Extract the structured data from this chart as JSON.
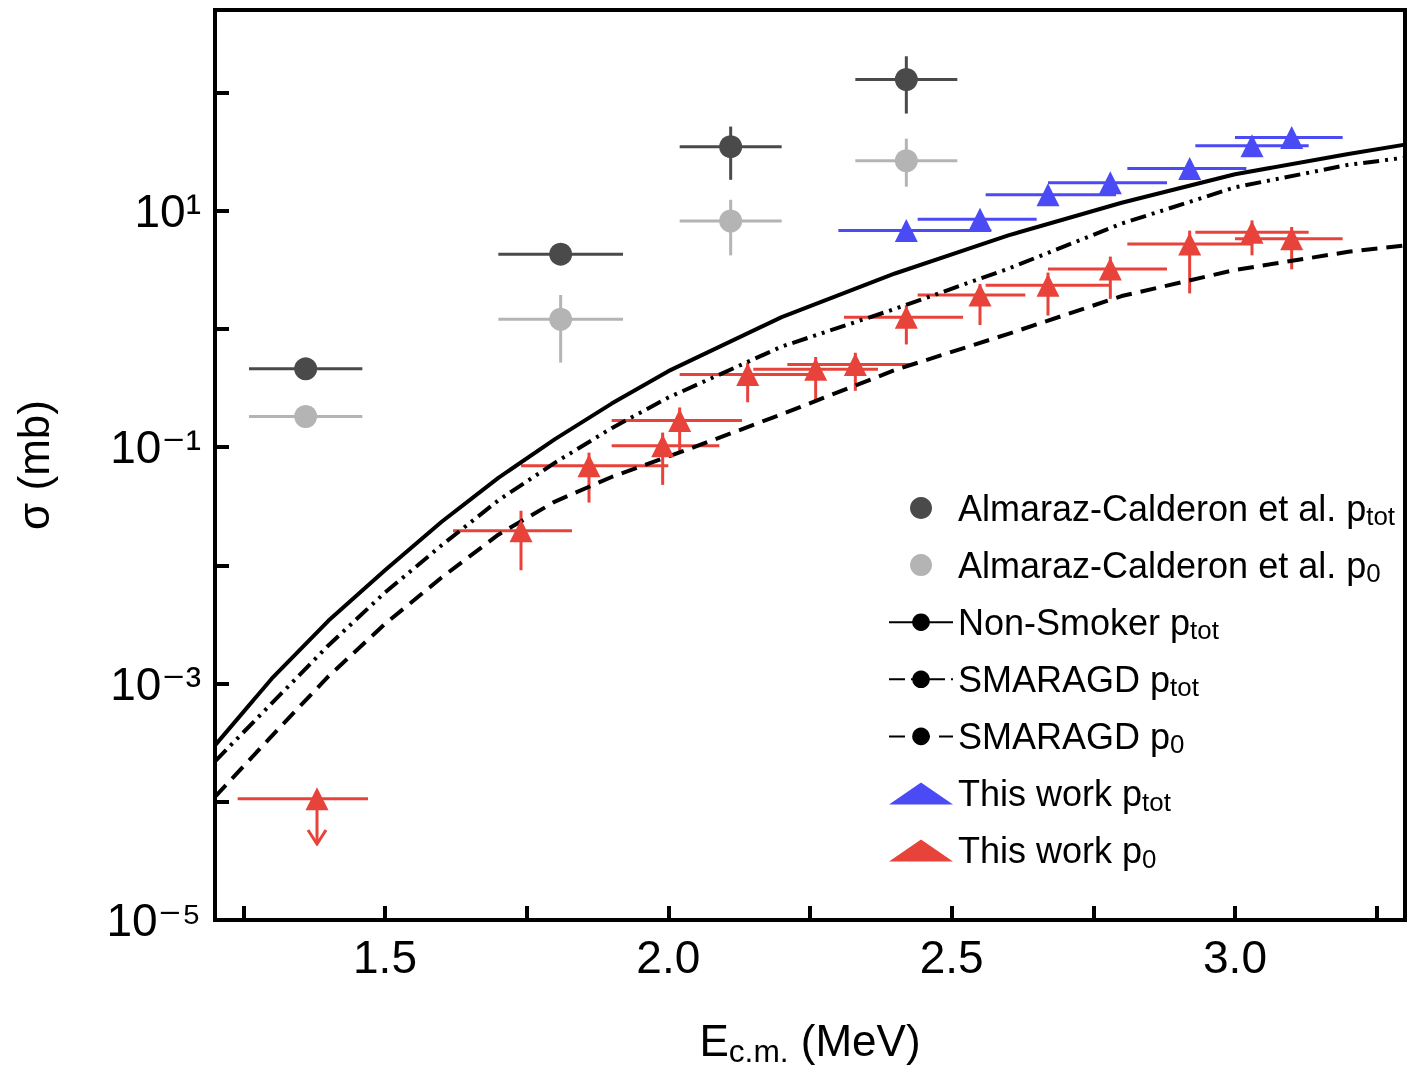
{
  "chart_data": {
    "type": "scatter",
    "xlabel": "E$_{c.m.}$ (MeV)",
    "ylabel": "σ (mb)",
    "log": "y",
    "grid": false,
    "legend": "right",
    "xlim": [
      1.2,
      3.3
    ],
    "ylim": [
      1e-05,
      500
    ],
    "xticks": [
      {
        "value": 1.25,
        "label": null
      },
      1.5,
      {
        "value": 1.75,
        "label": null
      },
      {
        "value": 2,
        "label": "2.0"
      },
      {
        "value": 2.25,
        "label": null
      },
      2.5,
      {
        "value": 2.75,
        "label": null
      },
      {
        "value": 3,
        "label": "3.0"
      },
      {
        "value": 3.25,
        "label": null
      }
    ],
    "yticks": [
      {
        "value": 1e-05,
        "label": "10⁻⁵"
      },
      {
        "value": 0.0001,
        "label": null
      },
      {
        "value": 0.001,
        "label": "10⁻³"
      },
      {
        "value": 0.01,
        "label": null
      },
      {
        "value": 0.1,
        "label": "10⁻¹"
      },
      {
        "value": 1,
        "label": null
      },
      {
        "value": 10,
        "label": "10¹"
      },
      {
        "value": 100,
        "label": null
      }
    ],
    "series": [
      {
        "name": "Almaraz-Calderon et al. p$_{tot}$",
        "marker": "circle",
        "color": "#4a4a4a",
        "x": [
          1.36,
          1.81,
          2.11,
          2.42
        ],
        "values": [
          0.46,
          4.3,
          34.9,
          129
        ],
        "xerrors": [
          [
            1.26,
            1.46
          ],
          [
            1.7,
            1.92
          ],
          [
            2.02,
            2.2
          ],
          [
            2.33,
            2.51
          ]
        ],
        "errors": [
          null,
          null,
          [
            18.3,
            51.6
          ],
          [
            66.5,
            203
          ]
        ]
      },
      {
        "name": "Almaraz-Calderon et al. p$_{0}$",
        "marker": "circle",
        "color": "#b4b4b4",
        "x": [
          1.36,
          1.81,
          2.11,
          2.42
        ],
        "values": [
          0.182,
          1.21,
          8.2,
          26.5
        ],
        "xerrors": [
          [
            1.26,
            1.46
          ],
          [
            1.7,
            1.92
          ],
          [
            2.02,
            2.2
          ],
          [
            2.33,
            2.51
          ]
        ],
        "errors": [
          null,
          [
            0.52,
            1.94
          ],
          [
            4.2,
            12.4
          ],
          [
            16,
            40.8
          ]
        ]
      },
      {
        "name": "Non-Smoker p$_{tot}$",
        "type": "line",
        "marker": "none",
        "line_style": "solid",
        "color": "#000000",
        "x": [
          1.2,
          1.3,
          1.4,
          1.5,
          1.6,
          1.7,
          1.8,
          1.9,
          2.0,
          2.2,
          2.4,
          2.6,
          2.8,
          3.0,
          3.2,
          3.3
        ],
        "values": [
          0.0003,
          0.0011,
          0.0034,
          0.0091,
          0.0234,
          0.055,
          0.117,
          0.234,
          0.44,
          1.26,
          2.95,
          6.2,
          11.7,
          20.4,
          30.2,
          36.3
        ]
      },
      {
        "name": "SMARAGD p$_{tot}$",
        "type": "line",
        "marker": "none",
        "line_style": "dashdotdot",
        "color": "#000000",
        "x": [
          1.2,
          1.3,
          1.4,
          1.5,
          1.6,
          1.7,
          1.8,
          1.9,
          2.0,
          2.2,
          2.4,
          2.6,
          2.8,
          3.0,
          3.2,
          3.3
        ],
        "values": [
          0.00022,
          0.00068,
          0.0021,
          0.0059,
          0.0148,
          0.0355,
          0.074,
          0.145,
          0.263,
          0.71,
          1.48,
          3.24,
          7.8,
          15.8,
          24.5,
          28.2
        ]
      },
      {
        "name": "SMARAGD p$_{0}$",
        "type": "line",
        "marker": "none",
        "line_style": "dashed",
        "color": "#000000",
        "x": [
          1.2,
          1.3,
          1.4,
          1.5,
          1.6,
          1.7,
          1.8,
          1.9,
          2.05,
          2.2,
          2.4,
          2.6,
          2.8,
          3.0,
          3.2,
          3.3
        ],
        "values": [
          0.00011,
          0.00036,
          0.00115,
          0.0032,
          0.0079,
          0.0182,
          0.0347,
          0.056,
          0.102,
          0.19,
          0.45,
          0.91,
          1.9,
          3.16,
          4.5,
          5.1
        ]
      },
      {
        "name": "This work p$_{tot}$",
        "marker": "triangle",
        "color": "#4b4bf5",
        "x": [
          2.42,
          2.55,
          2.67,
          2.78,
          2.92,
          3.03,
          3.1
        ],
        "values": [
          6.8,
          8.5,
          13.7,
          17.3,
          22.8,
          35.6,
          41.7
        ],
        "xerrors": [
          [
            2.3,
            2.57
          ],
          [
            2.44,
            2.65
          ],
          [
            2.56,
            2.79
          ],
          [
            2.67,
            2.88
          ],
          [
            2.81,
            3.02
          ],
          [
            2.93,
            3.13
          ],
          [
            3.0,
            3.19
          ]
        ],
        "errors": [
          [
            6.8,
            8
          ],
          [
            8.5,
            9.8
          ],
          [
            13.7,
            16
          ],
          [
            17.3,
            20
          ],
          [
            22.8,
            26.5
          ],
          [
            35.6,
            42
          ],
          [
            41.7,
            48
          ]
        ]
      },
      {
        "name": "This work p$_{0}$",
        "marker": "triangle",
        "color": "#e8433a",
        "x": [
          1.38,
          1.74,
          1.86,
          1.99,
          2.02,
          2.14,
          2.26,
          2.33,
          2.42,
          2.55,
          2.67,
          2.78,
          2.92,
          3.03,
          3.1
        ],
        "values": [
          0.000106,
          0.0196,
          0.0698,
          0.103,
          0.168,
          0.413,
          0.456,
          0.5,
          1.26,
          1.94,
          2.35,
          3.22,
          5.25,
          6.6,
          5.8
        ],
        "xerrors": [
          [
            1.24,
            1.47
          ],
          [
            1.62,
            1.83
          ],
          [
            1.74,
            2.0
          ],
          [
            1.9,
            2.09
          ],
          [
            1.9,
            2.13
          ],
          [
            2.02,
            2.25
          ],
          [
            2.15,
            2.37
          ],
          [
            2.21,
            2.43
          ],
          [
            2.31,
            2.52
          ],
          [
            2.44,
            2.63
          ],
          [
            2.56,
            2.78
          ],
          [
            2.67,
            2.88
          ],
          [
            2.81,
            3.03
          ],
          [
            2.93,
            3.13
          ],
          [
            3.0,
            3.19
          ]
        ],
        "errors": [
          [
            4.4e-05,
            0.000106
          ],
          [
            0.0091,
            0.029
          ],
          [
            0.034,
            0.09
          ],
          [
            0.048,
            0.133
          ],
          [
            0.09,
            0.217
          ],
          [
            0.24,
            0.52
          ],
          [
            0.24,
            0.58
          ],
          [
            0.3,
            0.63
          ],
          [
            0.74,
            1.59
          ],
          [
            1.08,
            2.4
          ],
          [
            1.3,
            3.0
          ],
          [
            1.8,
            4.1
          ],
          [
            2.0,
            6.8
          ],
          [
            4.2,
            8.3
          ],
          [
            3.2,
            7.3
          ]
        ]
      }
    ]
  }
}
